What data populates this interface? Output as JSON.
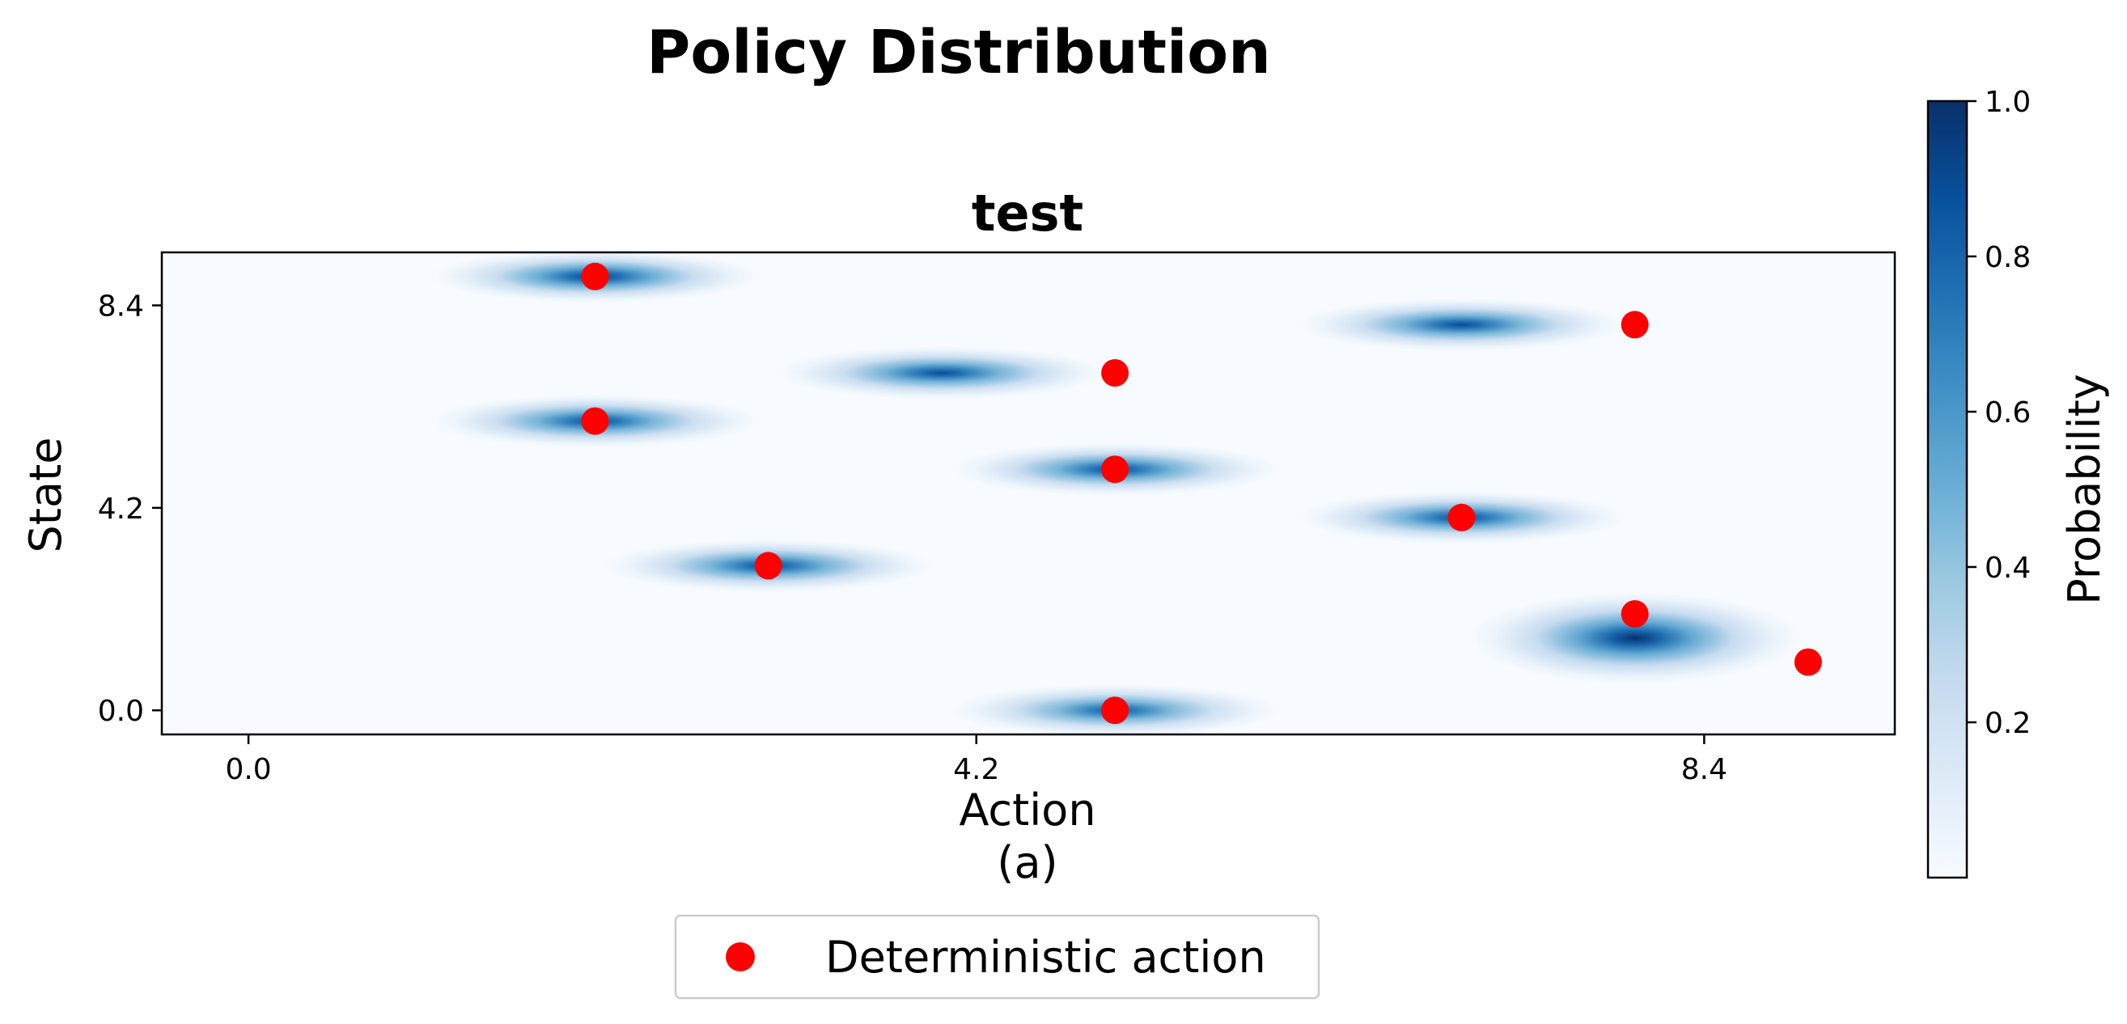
{
  "chart_data": {
    "type": "heatmap",
    "title": "Policy Distribution",
    "subtitle": "test",
    "xlabel": "Action",
    "panel_label": "(a)",
    "ylabel": "State",
    "xlim": [
      -0.5,
      9.5
    ],
    "ylim": [
      -0.5,
      9.5
    ],
    "x_ticks": [
      0.0,
      4.2,
      8.4
    ],
    "x_tick_labels": [
      "0.0",
      "4.2",
      "8.4"
    ],
    "y_ticks": [
      0.0,
      4.2,
      8.4
    ],
    "y_tick_labels": [
      "0.0",
      "4.2",
      "8.4"
    ],
    "colormap": "Blues",
    "colorbar": {
      "label": "Probability",
      "range": [
        0.0,
        1.0
      ],
      "ticks": [
        0.2,
        0.4,
        0.6,
        0.8,
        1.0
      ],
      "tick_labels": [
        "0.2",
        "0.4",
        "0.6",
        "0.8",
        "1.0"
      ]
    },
    "distributions": [
      {
        "state": 9.0,
        "action_mean": 2.0,
        "peak": 0.95
      },
      {
        "state": 8.0,
        "action_mean": 7.0,
        "peak": 0.9
      },
      {
        "state": 7.0,
        "action_mean": 4.0,
        "peak": 0.9
      },
      {
        "state": 6.0,
        "action_mean": 2.0,
        "peak": 0.9
      },
      {
        "state": 5.0,
        "action_mean": 5.0,
        "peak": 0.9
      },
      {
        "state": 4.0,
        "action_mean": 7.0,
        "peak": 0.9
      },
      {
        "state": 3.0,
        "action_mean": 3.0,
        "peak": 0.9
      },
      {
        "state": 1.5,
        "action_mean": 8.0,
        "peak": 1.0
      },
      {
        "state": 0.0,
        "action_mean": 5.0,
        "peak": 0.85
      }
    ],
    "series": [
      {
        "name": "Deterministic action",
        "color": "#ff0000",
        "points": [
          {
            "x": 2.0,
            "y": 9.0
          },
          {
            "x": 8.0,
            "y": 8.0
          },
          {
            "x": 5.0,
            "y": 7.0
          },
          {
            "x": 2.0,
            "y": 6.0
          },
          {
            "x": 5.0,
            "y": 5.0
          },
          {
            "x": 7.0,
            "y": 4.0
          },
          {
            "x": 3.0,
            "y": 3.0
          },
          {
            "x": 8.0,
            "y": 2.0
          },
          {
            "x": 9.0,
            "y": 1.0
          },
          {
            "x": 5.0,
            "y": 0.0
          }
        ]
      }
    ],
    "legend_position": "bottom-center",
    "grid": false
  }
}
